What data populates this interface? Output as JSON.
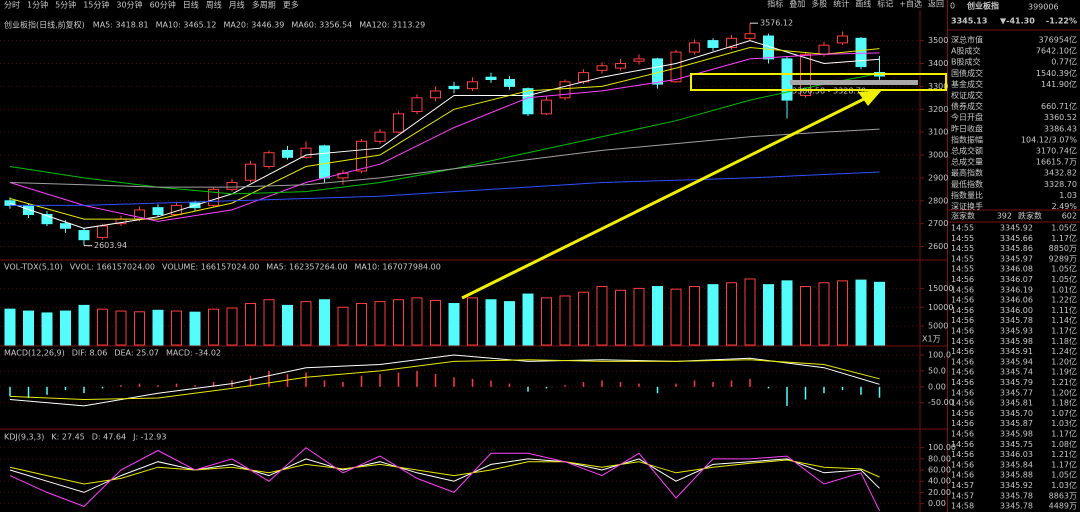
{
  "toolbar": {
    "periods": [
      "分时",
      "1分钟",
      "5分钟",
      "15分钟",
      "30分钟",
      "60分钟",
      "日线",
      "周线",
      "月线",
      "多周期",
      "更多"
    ],
    "tools": [
      "指标",
      "叠加",
      "多股",
      "统计",
      "画线",
      "标记",
      "+自选",
      "返回"
    ]
  },
  "quote": {
    "marker": "0",
    "name": "创业板指",
    "code": "399006",
    "price": "3345.13",
    "change": "▼-41.30",
    "change_pct": "-1.22%",
    "stats": [
      {
        "label": "深总市值",
        "value": "376954亿",
        "color": "#e0e0e0"
      },
      {
        "label": "A股成交",
        "value": "7642.10亿",
        "color": "#e8e800"
      },
      {
        "label": "B股成交",
        "value": "0.77亿",
        "color": "#e8e800"
      },
      {
        "label": "国债成交",
        "value": "1540.39亿",
        "color": "#e8e800"
      },
      {
        "label": "基金成交",
        "value": "141.90亿",
        "color": "#e8e800"
      },
      {
        "label": "权证成交"
      },
      {
        "label": "债券成交",
        "value": "660.71亿",
        "color": "#e8e800"
      },
      {
        "label": "今日开盘",
        "value": "3360.52",
        "color": "#00e000"
      },
      {
        "label": "昨日收盘",
        "value": "3386.43",
        "color": "#e0e0e0"
      },
      {
        "label": "指数振幅",
        "value": "104.12/3.07%",
        "color": "#e0e0e0"
      },
      {
        "label": "总成交额",
        "value": "3170.74亿",
        "color": "#e8e800"
      },
      {
        "label": "总成交量",
        "value": "16615.7万",
        "color": "#e8e800"
      },
      {
        "label": "最高指数",
        "value": "3432.82",
        "color": "#ff4040"
      },
      {
        "label": "最低指数",
        "value": "3328.70",
        "color": "#00e000"
      },
      {
        "label": "指数量比",
        "value": "1.03",
        "color": "#ff4040"
      },
      {
        "label": "深证换手",
        "value": "2.49%",
        "color": "#e0e0e0"
      }
    ],
    "breadth": {
      "up_label": "涨家数",
      "up": "392",
      "down_label": "跌家数",
      "down": "602"
    },
    "ticks": [
      [
        "14:55",
        "3345.92",
        "1.05亿"
      ],
      [
        "14:55",
        "3345.66",
        "1.17亿"
      ],
      [
        "14:55",
        "3345.86",
        "8850万"
      ],
      [
        "14:55",
        "3345.97",
        "9289万"
      ],
      [
        "14:55",
        "3346.08",
        "1.05亿"
      ],
      [
        "14:56",
        "3346.07",
        "1.05亿"
      ],
      [
        "14:56",
        "3346.19",
        "1.01亿"
      ],
      [
        "14:56",
        "3346.06",
        "1.22亿"
      ],
      [
        "14:56",
        "3346.00",
        "1.11亿"
      ],
      [
        "14:56",
        "3345.78",
        "1.14亿"
      ],
      [
        "14:56",
        "3345.93",
        "1.17亿"
      ],
      [
        "14:56",
        "3345.98",
        "1.18亿"
      ],
      [
        "14:56",
        "3345.91",
        "1.24亿"
      ],
      [
        "14:56",
        "3345.94",
        "1.20亿"
      ],
      [
        "14:56",
        "3345.74",
        "1.19亿"
      ],
      [
        "14:56",
        "3345.79",
        "1.21亿"
      ],
      [
        "14:56",
        "3345.77",
        "1.20亿"
      ],
      [
        "14:56",
        "3345.81",
        "1.18亿"
      ],
      [
        "14:56",
        "3345.70",
        "1.07亿"
      ],
      [
        "14:56",
        "3345.87",
        "1.03亿"
      ],
      [
        "14:56",
        "3345.98",
        "1.17亿"
      ],
      [
        "14:56",
        "3345.75",
        "1.08亿"
      ],
      [
        "14:56",
        "3346.03",
        "1.21亿"
      ],
      [
        "14:56",
        "3345.84",
        "1.17亿"
      ],
      [
        "14:56",
        "3345.88",
        "1.05亿"
      ],
      [
        "14:57",
        "3345.92",
        "1.03亿"
      ],
      [
        "14:57",
        "3345.78",
        "8863万"
      ],
      [
        "14:58",
        "3345.78",
        "4489万"
      ]
    ]
  },
  "chart_data": [
    {
      "type": "candlestick",
      "title": "创业板指(日线,前复权)",
      "up_color": "#ff3c3c",
      "down_color": "#54fcfc",
      "grid": true,
      "open": [
        2800,
        2780,
        2740,
        2700,
        2670,
        2640,
        2700,
        2720,
        2770,
        2740,
        2790,
        2780,
        2850,
        2890,
        2950,
        3020,
        2990,
        3040,
        2900,
        2930,
        3060,
        3100,
        3190,
        3250,
        3300,
        3290,
        3340,
        3330,
        3290,
        3180,
        3250,
        3320,
        3370,
        3380,
        3410,
        3420,
        3320,
        3450,
        3500,
        3470,
        3510,
        3520,
        3420,
        3260,
        3440,
        3490,
        3510,
        3360.52
      ],
      "high": [
        2815,
        2790,
        2755,
        2715,
        2680,
        2700,
        2735,
        2775,
        2785,
        2795,
        2800,
        2860,
        2895,
        2975,
        3020,
        3040,
        3060,
        3045,
        2935,
        3070,
        3115,
        3190,
        3265,
        3300,
        3320,
        3340,
        3360,
        3345,
        3295,
        3255,
        3330,
        3375,
        3405,
        3420,
        3440,
        3425,
        3460,
        3505,
        3510,
        3525,
        3576.12,
        3530,
        3430,
        3450,
        3495,
        3540,
        3515,
        3432.82
      ],
      "low": [
        2765,
        2725,
        2690,
        2660,
        2603.94,
        2630,
        2690,
        2710,
        2730,
        2735,
        2755,
        2775,
        2840,
        2880,
        2940,
        2980,
        2985,
        2880,
        2870,
        2920,
        3050,
        3095,
        3180,
        3235,
        3270,
        3280,
        3315,
        3285,
        3170,
        3175,
        3240,
        3310,
        3355,
        3370,
        3395,
        3290,
        3315,
        3440,
        3455,
        3460,
        3500,
        3400,
        3160,
        3250,
        3430,
        3480,
        3375,
        3328.7
      ],
      "close": [
        2780,
        2740,
        2700,
        2680,
        2630,
        2690,
        2720,
        2760,
        2740,
        2780,
        2770,
        2850,
        2880,
        2960,
        3010,
        2990,
        3030,
        2900,
        2920,
        3060,
        3100,
        3180,
        3250,
        3280,
        3290,
        3320,
        3330,
        3300,
        3180,
        3240,
        3320,
        3360,
        3390,
        3400,
        3420,
        3310,
        3450,
        3490,
        3470,
        3510,
        3530,
        3420,
        3240,
        3440,
        3480,
        3520,
        3386.43,
        3345.13
      ],
      "ylim": [
        2550,
        3590
      ],
      "yticks": [
        2600,
        2700,
        2800,
        2900,
        3000,
        3100,
        3200,
        3300,
        3400,
        3500
      ],
      "line_x": [
        0,
        4,
        8,
        12,
        16,
        20,
        24,
        28,
        32,
        36,
        40,
        44,
        47
      ],
      "series": [
        {
          "color": "#ffffff",
          "values": [
            2790,
            2680,
            2730,
            2830,
            3000,
            3030,
            3260,
            3260,
            3340,
            3400,
            3500,
            3400,
            3418.81
          ]
        },
        {
          "color": "#e8e800",
          "values": [
            2810,
            2720,
            2720,
            2790,
            2950,
            3000,
            3200,
            3280,
            3300,
            3380,
            3470,
            3440,
            3465.12
          ]
        },
        {
          "color": "#ff40ff",
          "values": [
            2880,
            2780,
            2710,
            2760,
            2880,
            2960,
            3120,
            3250,
            3280,
            3330,
            3420,
            3440,
            3446.39
          ]
        },
        {
          "color": "#00c000",
          "values": [
            2950,
            2900,
            2860,
            2830,
            2840,
            2880,
            2940,
            3010,
            3080,
            3150,
            3240,
            3310,
            3356.54
          ]
        },
        {
          "color": "#a0a0a0",
          "values": [
            2880,
            2870,
            2860,
            2860,
            2870,
            2900,
            2940,
            2980,
            3020,
            3050,
            3080,
            3100,
            3113.29
          ]
        },
        {
          "color": "#3050ff",
          "values": [
            2780,
            2780,
            2790,
            2800,
            2810,
            2820,
            2840,
            2860,
            2880,
            2890,
            2900,
            2915,
            2926
          ]
        }
      ],
      "legend": [
        {
          "text": "MA5: 3418.81",
          "color": "#ffffff"
        },
        {
          "text": "MA10: 3465.12",
          "color": "#e8e800"
        },
        {
          "text": "MA20: 3446.39",
          "color": "#ff40ff"
        },
        {
          "text": "MA60: 3356.54",
          "color": "#00c000"
        },
        {
          "text": "MA120: 3113.29",
          "color": "#a0a0a0"
        }
      ],
      "range_label": "3306.58 - 3328.70"
    },
    {
      "type": "bar",
      "values": [
        9500,
        9000,
        8500,
        9000,
        10500,
        9500,
        9000,
        8800,
        9200,
        9000,
        8700,
        9500,
        9800,
        11000,
        12000,
        10500,
        11500,
        12000,
        10000,
        11000,
        11500,
        12000,
        12500,
        11800,
        11000,
        12500,
        12000,
        11500,
        13500,
        12500,
        13000,
        14000,
        15500,
        14500,
        15000,
        15500,
        14800,
        15500,
        16000,
        16500,
        17500,
        16000,
        17000,
        15500,
        16500,
        17000,
        17200,
        16615.7
      ],
      "ylim": [
        0,
        22000
      ],
      "yticks": [
        5000,
        10000,
        15000
      ],
      "unit": "X1万",
      "legend": [
        {
          "text": "VOL-TDX(5,10)",
          "color": "#c0c0c0"
        },
        {
          "text": "VVOL: 166157024.00",
          "color": "#c0c0c0"
        },
        {
          "text": "VOLUME: 166157024.00",
          "color": "#e8e800"
        },
        {
          "text": "MA5: 162357264.00",
          "color": "#ff40ff"
        },
        {
          "text": "MA10: 167077984.00",
          "color": "#00c000"
        }
      ]
    },
    {
      "type": "macd",
      "values": [
        -30,
        -35,
        -25,
        -10,
        -20,
        -5,
        5,
        10,
        5,
        10,
        5,
        15,
        20,
        35,
        50,
        40,
        45,
        20,
        15,
        35,
        40,
        45,
        50,
        40,
        30,
        25,
        20,
        10,
        -15,
        -5,
        5,
        15,
        20,
        15,
        10,
        -20,
        10,
        20,
        15,
        20,
        25,
        -5,
        -60,
        -40,
        -20,
        -10,
        -25,
        -34.02
      ],
      "up_color": "#ff3c3c",
      "down_color": "#54fcfc",
      "line_x": [
        0,
        4,
        8,
        12,
        16,
        20,
        24,
        28,
        32,
        36,
        40,
        44,
        47
      ],
      "series": [
        {
          "color": "#ffffff",
          "values": [
            -40,
            -60,
            -20,
            10,
            60,
            70,
            100,
            80,
            85,
            80,
            90,
            60,
            8.06
          ]
        },
        {
          "color": "#e8e800",
          "values": [
            -30,
            -40,
            -35,
            -5,
            30,
            50,
            80,
            85,
            80,
            80,
            85,
            70,
            25.07
          ]
        }
      ],
      "ylim": [
        -120,
        122
      ],
      "yticks": [
        {
          "value": -50,
          "label": "-50.00"
        },
        {
          "value": 0,
          "label": "0.00"
        },
        {
          "value": 50,
          "label": "50.0"
        },
        {
          "value": 100,
          "label": "100.0"
        }
      ],
      "legend": [
        {
          "text": "MACD(12,26,9)",
          "color": "#c0c0c0"
        },
        {
          "text": "DIF: 8.06",
          "color": "#ffffff"
        },
        {
          "text": "DEA: 25.07",
          "color": "#e8e800"
        },
        {
          "text": "MACD: -34.02",
          "color": "#ff40ff"
        }
      ]
    },
    {
      "type": "line",
      "line_x": [
        0,
        2,
        4,
        6,
        8,
        10,
        12,
        14,
        16,
        18,
        20,
        22,
        24,
        26,
        28,
        30,
        32,
        34,
        36,
        38,
        40,
        42,
        44,
        46,
        47
      ],
      "series": [
        {
          "color": "#ffffff",
          "values": [
            60,
            40,
            20,
            50,
            75,
            60,
            70,
            50,
            80,
            60,
            75,
            55,
            40,
            70,
            80,
            75,
            60,
            80,
            40,
            70,
            75,
            80,
            55,
            60,
            27.45
          ]
        },
        {
          "color": "#e8e800",
          "values": [
            65,
            50,
            35,
            45,
            65,
            60,
            65,
            55,
            70,
            62,
            70,
            60,
            50,
            60,
            75,
            75,
            65,
            75,
            55,
            65,
            72,
            78,
            65,
            62,
            47.64
          ]
        },
        {
          "color": "#ff40ff",
          "values": [
            50,
            20,
            -5,
            60,
            95,
            60,
            80,
            40,
            100,
            55,
            85,
            45,
            20,
            90,
            90,
            75,
            50,
            90,
            10,
            80,
            80,
            85,
            35,
            55,
            -12.93
          ]
        }
      ],
      "ylim": [
        -15,
        128
      ],
      "yticks": [
        {
          "value": 0,
          "label": "0.00"
        },
        {
          "value": 20,
          "label": "20.00"
        },
        {
          "value": 40,
          "label": "40.00"
        },
        {
          "value": 60,
          "label": "60.00"
        },
        {
          "value": 80,
          "label": "80.00"
        },
        {
          "value": 100,
          "label": "100.00"
        }
      ],
      "legend": [
        {
          "text": "KDJ(9,3,3)",
          "color": "#c0c0c0"
        },
        {
          "text": "K: 27.45",
          "color": "#ffffff"
        },
        {
          "text": "D: 47.64",
          "color": "#e8e800"
        },
        {
          "text": "J: -12.93",
          "color": "#ff40ff"
        }
      ]
    }
  ]
}
